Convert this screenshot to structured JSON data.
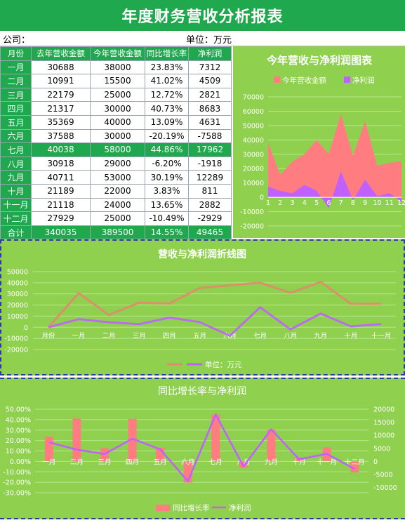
{
  "title": "年度财务营收分析报表",
  "company_label": "公司：",
  "unit_label": "单位：万元",
  "table": {
    "headers": [
      "月份",
      "去年营收金额",
      "今年营收金额",
      "同比增长率",
      "净利润"
    ],
    "rows": [
      [
        "一月",
        "30688",
        "38000",
        "23.83%",
        "7312"
      ],
      [
        "二月",
        "10991",
        "15500",
        "41.02%",
        "4509"
      ],
      [
        "三月",
        "22179",
        "25000",
        "12.72%",
        "2821"
      ],
      [
        "四月",
        "21317",
        "30000",
        "40.73%",
        "8683"
      ],
      [
        "五月",
        "35369",
        "40000",
        "13.09%",
        "4631"
      ],
      [
        "六月",
        "37588",
        "30000",
        "-20.19%",
        "-7588"
      ],
      [
        "七月",
        "40038",
        "58000",
        "44.86%",
        "17962"
      ],
      [
        "八月",
        "30918",
        "29000",
        "-6.20%",
        "-1918"
      ],
      [
        "九月",
        "40711",
        "53000",
        "30.19%",
        "12289"
      ],
      [
        "十月",
        "21189",
        "22000",
        "3.83%",
        "811"
      ],
      [
        "十一月",
        "21118",
        "24000",
        "13.65%",
        "2882"
      ],
      [
        "十二月",
        "27929",
        "25000",
        "-10.49%",
        "-2929"
      ]
    ],
    "total": [
      "合计",
      "340035",
      "389500",
      "14.55%",
      "49465"
    ]
  },
  "colors": {
    "header_green": "#1fa84e",
    "panel_green": "#8fd14f",
    "salmon": "#ff7c80",
    "purple": "#c060ff",
    "dash_blue": "#2e3a9e"
  },
  "chart_data": [
    {
      "type": "area",
      "title": "今年营收与净利润图表",
      "x": [
        "1",
        "2",
        "3",
        "4",
        "5",
        "6",
        "7",
        "8",
        "9",
        "10",
        "11",
        "12"
      ],
      "series": [
        {
          "name": "今年营收金额",
          "values": [
            38000,
            15500,
            25000,
            30000,
            40000,
            30000,
            58000,
            29000,
            53000,
            22000,
            24000,
            25000
          ]
        },
        {
          "name": "净利润",
          "values": [
            7312,
            4509,
            2821,
            8683,
            4631,
            -7588,
            17962,
            -1918,
            12289,
            811,
            2882,
            -2929
          ]
        }
      ],
      "ylim": [
        -20000,
        70000
      ],
      "yticks": [
        "70000",
        "60000",
        "50000",
        "40000",
        "30000",
        "20000",
        "10000",
        "0",
        "-10000",
        "-20000"
      ],
      "legend_position": "top"
    },
    {
      "type": "line",
      "title": "营收与净利润折线图",
      "x": [
        "月份",
        "一月",
        "二月",
        "三月",
        "四月",
        "五月",
        "六月",
        "七月",
        "八月",
        "九月",
        "十月",
        "十一月"
      ],
      "series": [
        {
          "name": "",
          "values": [
            0,
            30688,
            10991,
            22179,
            21317,
            35369,
            37588,
            40038,
            30918,
            40711,
            21189,
            21118
          ]
        },
        {
          "name": "单位：万元",
          "values": [
            0,
            7312,
            4509,
            2821,
            8683,
            4631,
            -7588,
            17962,
            -1918,
            12289,
            811,
            2882
          ]
        }
      ],
      "ylim": [
        -20000,
        50000
      ],
      "yticks": [
        "50000",
        "40000",
        "30000",
        "20000",
        "10000",
        "0",
        "-10000",
        "-20000"
      ],
      "legend_position": "bottom"
    },
    {
      "type": "bar",
      "title": "同比增长率与净利润",
      "categories": [
        "一月",
        "二月",
        "三月",
        "四月",
        "五月",
        "六月",
        "七月",
        "八月",
        "九月",
        "十月",
        "十一月",
        "十二月"
      ],
      "series": [
        {
          "name": "同比增长率",
          "values": [
            23.83,
            41.02,
            12.72,
            40.73,
            13.09,
            -20.19,
            44.86,
            -6.2,
            30.19,
            3.83,
            13.65,
            -10.49
          ]
        },
        {
          "name": "净利润",
          "values": [
            7312,
            4509,
            2821,
            8683,
            4631,
            -7588,
            17962,
            -1918,
            12289,
            811,
            2882,
            -2929
          ]
        }
      ],
      "ylim_left": [
        -30,
        50
      ],
      "ylim_right": [
        -10000,
        20000
      ],
      "yticks_left": [
        "50.00%",
        "40.00%",
        "30.00%",
        "20.00%",
        "10.00%",
        "0.00%",
        "-10.00%",
        "-20.00%",
        "-30.00%"
      ],
      "yticks_right": [
        "20000",
        "15000",
        "10000",
        "5000",
        "0",
        "-5000",
        "-10000"
      ],
      "legend_position": "bottom"
    }
  ]
}
